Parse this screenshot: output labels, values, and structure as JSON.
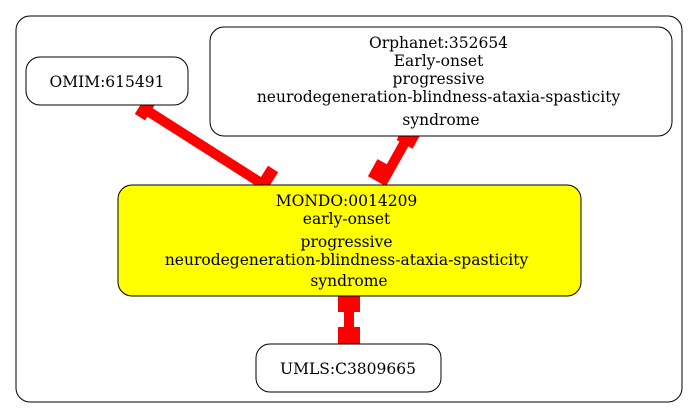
{
  "graph": {
    "nodes": [
      {
        "id": "OMIM:615491",
        "lines": [
          "OMIM:615491"
        ],
        "fill": "#ffffff"
      },
      {
        "id": "Orphanet:352654",
        "lines": [
          "Orphanet:352654",
          "Early-onset",
          "progressive",
          "neurodegeneration-blindness-ataxia-spasticity",
          "syndrome"
        ],
        "fill": "#ffffff"
      },
      {
        "id": "MONDO:0014209",
        "lines": [
          "MONDO:0014209",
          "early-onset",
          "progressive",
          "neurodegeneration-blindness-ataxia-spasticity",
          "syndrome"
        ],
        "fill": "#ffff00",
        "highlighted": true
      },
      {
        "id": "UMLS:C3809665",
        "lines": [
          "UMLS:C3809665"
        ],
        "fill": "#ffffff"
      }
    ],
    "edges": [
      {
        "from": "OMIM:615491",
        "to": "MONDO:0014209",
        "style": "bidirectional-box"
      },
      {
        "from": "Orphanet:352654",
        "to": "MONDO:0014209",
        "style": "bidirectional-box"
      },
      {
        "from": "MONDO:0014209",
        "to": "UMLS:C3809665",
        "style": "bidirectional-box"
      }
    ]
  },
  "colors": {
    "edge": "#ff0000",
    "node_stroke": "#000000",
    "cluster_stroke": "#000000",
    "highlight": "#ffff00"
  }
}
